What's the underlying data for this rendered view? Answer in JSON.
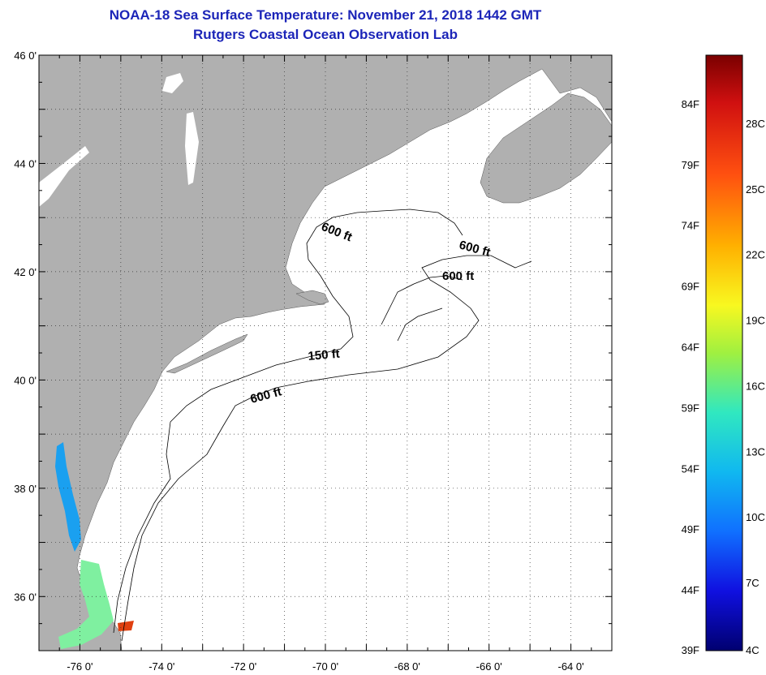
{
  "title_line1": "NOAA-18 Sea Surface Temperature:  November 21, 2018 1442 GMT",
  "title_line2": "Rutgers Coastal Ocean Observation Lab",
  "map": {
    "lon_range": [
      -77,
      -63
    ],
    "lat_range": [
      35,
      46
    ],
    "lon_ticks": [
      {
        "value": -76,
        "label": "-76 0'"
      },
      {
        "value": -74,
        "label": "-74 0'"
      },
      {
        "value": -72,
        "label": "-72 0'"
      },
      {
        "value": -70,
        "label": "-70 0'"
      },
      {
        "value": -68,
        "label": "-68 0'"
      },
      {
        "value": -66,
        "label": "-66 0'"
      },
      {
        "value": -64,
        "label": "-64 0'"
      }
    ],
    "lat_ticks": [
      {
        "value": 46,
        "label": "46 0'"
      },
      {
        "value": 44,
        "label": "44 0'"
      },
      {
        "value": 42,
        "label": "42 0'"
      },
      {
        "value": 40,
        "label": "40 0'"
      },
      {
        "value": 38,
        "label": "38 0'"
      },
      {
        "value": 36,
        "label": "36 0'"
      }
    ],
    "grid": "dotted",
    "land_color": "#b0b0b0",
    "ocean_color": "#ffffff",
    "contour_labels": [
      "600 ft",
      "600 ft",
      "600 ft",
      "150 ft",
      "600 ft"
    ]
  },
  "colorbar": {
    "f_labels": [
      "84F",
      "79F",
      "74F",
      "69F",
      "64F",
      "59F",
      "54F",
      "49F",
      "44F",
      "39F"
    ],
    "c_labels": [
      "28C",
      "25C",
      "22C",
      "19C",
      "16C",
      "13C",
      "10C",
      "7C",
      "4C"
    ],
    "colors_top_to_bottom": [
      "#7a0000",
      "#e01010",
      "#ff6a10",
      "#ffc800",
      "#f0ff20",
      "#90f050",
      "#30e8c0",
      "#10b0f0",
      "#1060ff",
      "#1010e0",
      "#000070"
    ]
  }
}
